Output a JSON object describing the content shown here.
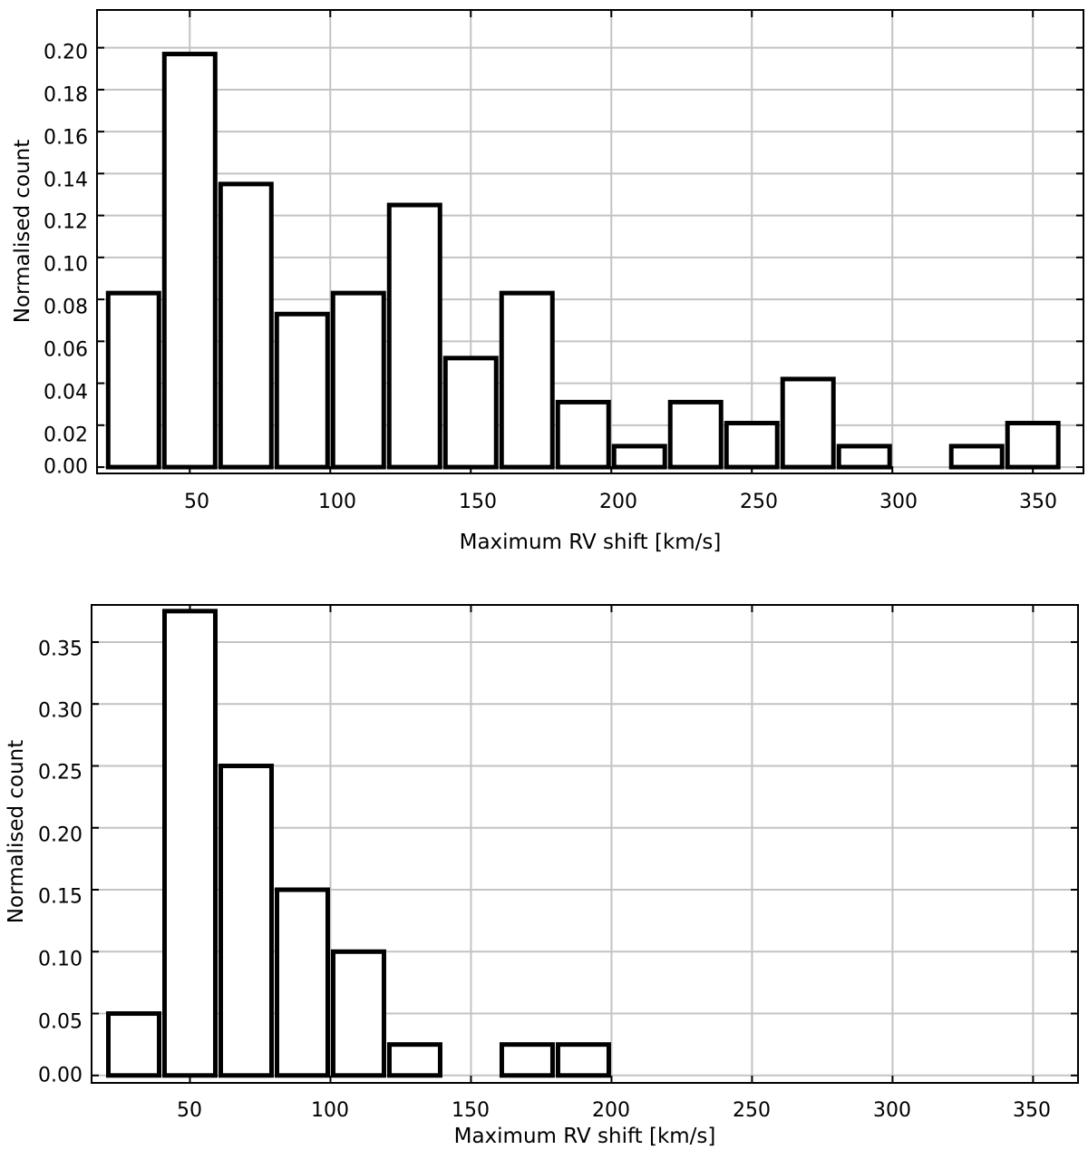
{
  "chart_data": [
    {
      "type": "bar",
      "title": "",
      "xlabel": "Maximum RV shift [km/s]",
      "ylabel": "Normalised count",
      "xlim": [
        17,
        368
      ],
      "ylim": [
        -0.003,
        0.218
      ],
      "xticks": [
        "50",
        "100",
        "150",
        "200",
        "250",
        "300",
        "350"
      ],
      "yticks": [
        "0.00",
        "0.02",
        "0.04",
        "0.06",
        "0.08",
        "0.10",
        "0.12",
        "0.14",
        "0.16",
        "0.18",
        "0.20"
      ],
      "grid": true,
      "bin_width": 20,
      "bin_starts": [
        20,
        40,
        60,
        80,
        100,
        120,
        140,
        160,
        180,
        200,
        220,
        240,
        260,
        280,
        300,
        320,
        340
      ],
      "values": [
        0.083,
        0.197,
        0.135,
        0.073,
        0.083,
        0.125,
        0.052,
        0.083,
        0.031,
        0.01,
        0.031,
        0.021,
        0.042,
        0.01,
        0.0,
        0.01,
        0.021
      ]
    },
    {
      "type": "bar",
      "title": "",
      "xlabel": "Maximum RV shift [km/s]",
      "ylabel": "Normalised count",
      "xlim": [
        15,
        366
      ],
      "ylim": [
        -0.006,
        0.38
      ],
      "xticks": [
        "50",
        "100",
        "150",
        "200",
        "250",
        "300",
        "350"
      ],
      "yticks": [
        "0.00",
        "0.05",
        "0.10",
        "0.15",
        "0.20",
        "0.25",
        "0.30",
        "0.35"
      ],
      "grid": true,
      "bin_width": 20,
      "bin_starts": [
        20,
        40,
        60,
        80,
        100,
        120,
        140,
        160,
        180
      ],
      "values": [
        0.05,
        0.375,
        0.25,
        0.15,
        0.1,
        0.025,
        0.0,
        0.025,
        0.025
      ]
    }
  ]
}
